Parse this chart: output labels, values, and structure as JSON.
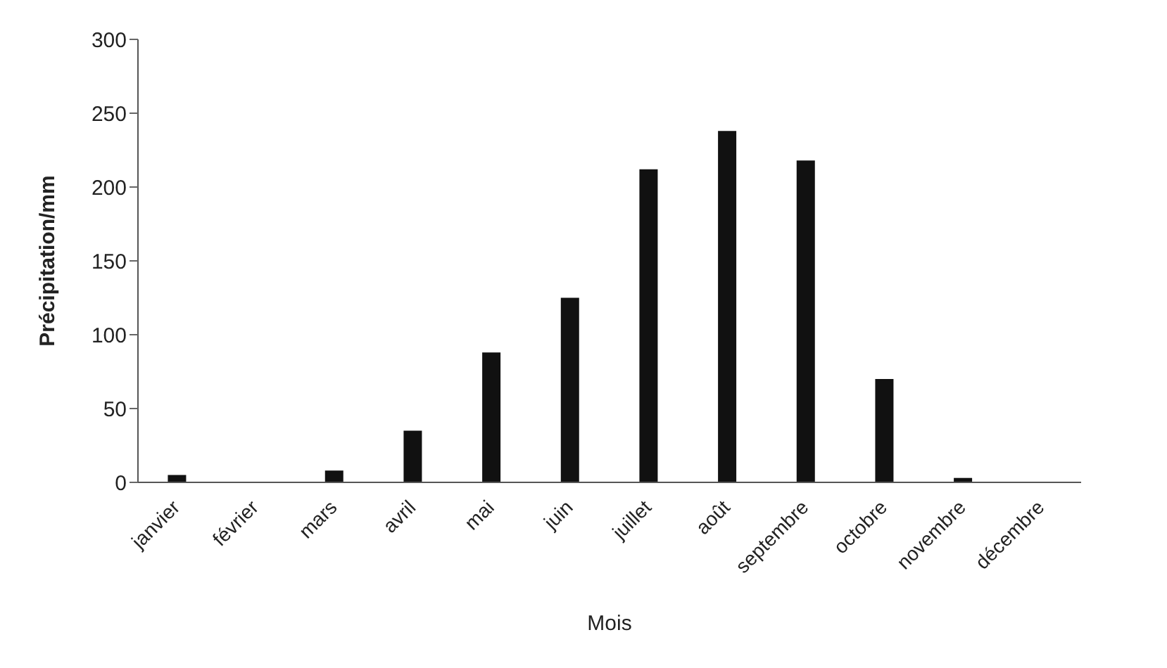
{
  "chart_data": {
    "type": "bar",
    "xlabel": "Mois",
    "ylabel": "Précipitation/mm",
    "categories": [
      "janvier",
      "février",
      "mars",
      "avril",
      "mai",
      "juin",
      "juillet",
      "août",
      "septembre",
      "octobre",
      "novembre",
      "décembre"
    ],
    "values": [
      5,
      0,
      8,
      35,
      88,
      125,
      212,
      238,
      218,
      70,
      3,
      0
    ],
    "color": "#111111",
    "ylim": [
      0,
      300
    ],
    "yticks": [
      0,
      50,
      100,
      150,
      200,
      250,
      300
    ],
    "grid": false,
    "legend": false
  }
}
